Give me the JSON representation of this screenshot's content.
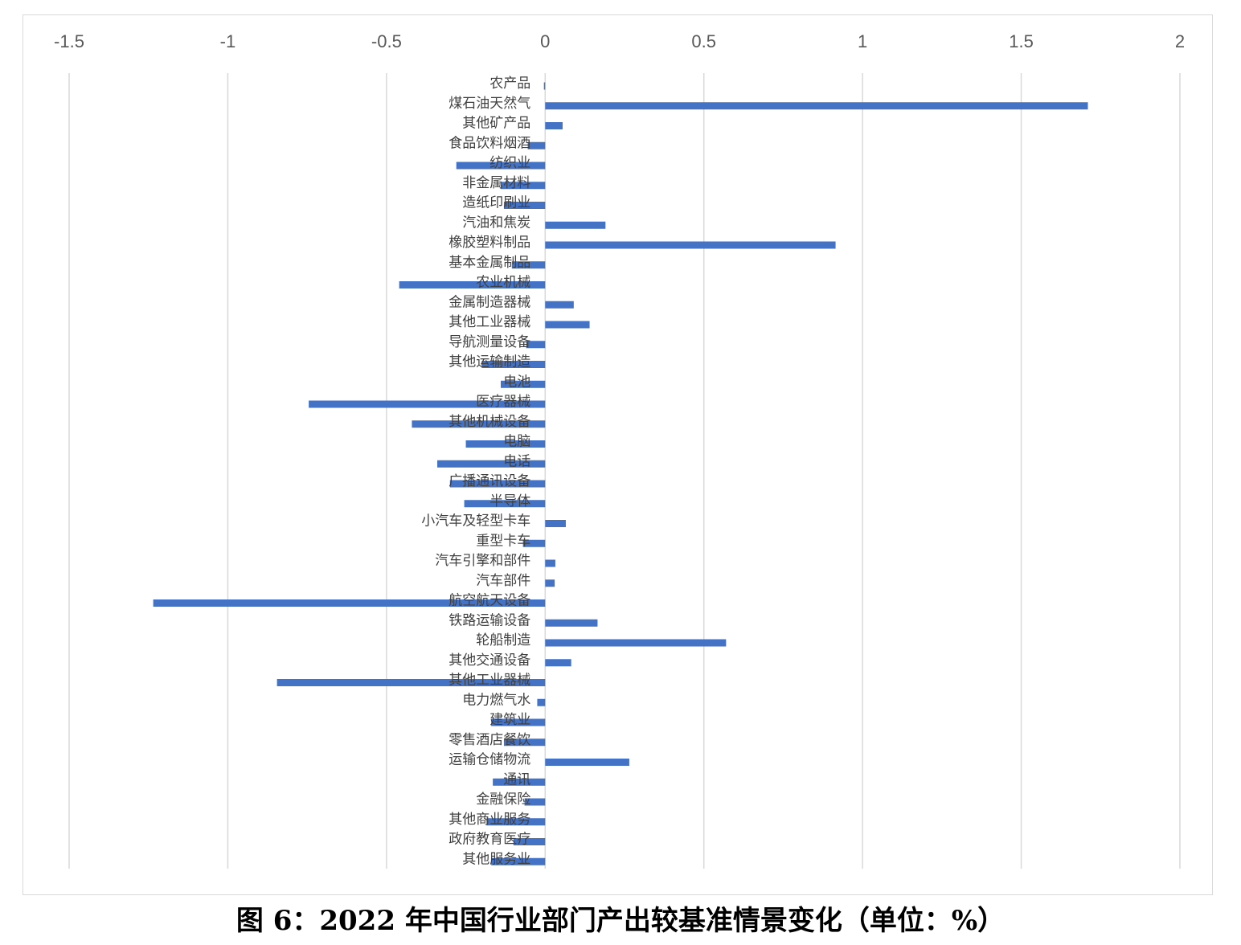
{
  "chart_data": {
    "type": "bar",
    "orientation": "horizontal",
    "title": "",
    "xlabel": "",
    "ylabel": "",
    "xlim": [
      -1.5,
      2
    ],
    "x_ticks": [
      -1.5,
      -1,
      -0.5,
      0,
      0.5,
      1,
      1.5,
      2
    ],
    "x_tick_labels": [
      "-1.5",
      "-1",
      "-0.5",
      "0",
      "0.5",
      "1",
      "1.5",
      "2"
    ],
    "x_axis_position": "top",
    "grid": "vertical",
    "legend": "none",
    "bar_color": "#4472C4",
    "categories": [
      "农产品",
      "煤石油天然气",
      "其他矿产品",
      "食品饮料烟酒",
      "纺织业",
      "非金属材料",
      "造纸印刷业",
      "汽油和焦炭",
      "橡胶塑料制品",
      "基本金属制品",
      "农业机械",
      "金属制造器械",
      "其他工业器械",
      "导航测量设备",
      "其他运输制造",
      "电池",
      "医疗器械",
      "其他机械设备",
      "电脑",
      "电话",
      "广播通讯设备",
      "半导体",
      "小汽车及轻型卡车",
      "重型卡车",
      "汽车引擎和部件",
      "汽车部件",
      "航空航天设备",
      "铁路运输设备",
      "轮船制造",
      "其他交通设备",
      "其他工业器械",
      "电力燃气水",
      "建筑业",
      "零售酒店餐饮",
      "运输仓储物流",
      "通讯",
      "金融保险",
      "其他商业服务",
      "政府教育医疗",
      "其他服务业"
    ],
    "values": [
      -0.004,
      1.71,
      0.055,
      -0.055,
      -0.28,
      -0.14,
      -0.13,
      0.19,
      0.915,
      -0.105,
      -0.46,
      0.09,
      0.14,
      -0.06,
      -0.2,
      -0.14,
      -0.745,
      -0.42,
      -0.25,
      -0.34,
      -0.3,
      -0.255,
      0.065,
      -0.07,
      0.032,
      0.03,
      -1.235,
      0.165,
      0.57,
      0.082,
      -0.845,
      -0.025,
      -0.17,
      -0.13,
      0.265,
      -0.165,
      -0.065,
      -0.185,
      -0.1,
      -0.17
    ]
  },
  "caption": "图 6：2022 年中国行业部门产出较基准情景变化（单位：%）"
}
